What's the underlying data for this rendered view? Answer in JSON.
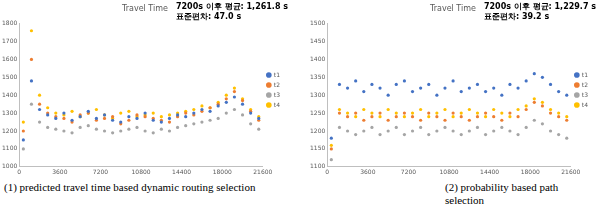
{
  "chart_data": [
    {
      "type": "scatter",
      "title": "Travel Time",
      "annotations": [
        "7200s 이후 평균: 1,261.8 s",
        "표준편차: 47.0 s"
      ],
      "caption": "(1) predicted travel time based dynamic routing selection",
      "x": [
        360,
        1080,
        1800,
        2520,
        3240,
        3960,
        4680,
        5400,
        6120,
        6840,
        7560,
        8280,
        9000,
        9720,
        10440,
        11160,
        11880,
        12600,
        13320,
        14040,
        14760,
        15480,
        16200,
        16920,
        17640,
        18360,
        19080,
        19800,
        20520,
        21240
      ],
      "series": [
        {
          "name": "t1",
          "color": "#4472c4",
          "values": [
            1150,
            1480,
            1320,
            1290,
            1270,
            1300,
            1260,
            1280,
            1310,
            1270,
            1290,
            1260,
            1250,
            1280,
            1270,
            1300,
            1260,
            1250,
            1270,
            1290,
            1280,
            1300,
            1320,
            1310,
            1340,
            1360,
            1390,
            1350,
            1300,
            1270
          ]
        },
        {
          "name": "t2",
          "color": "#ed7d31",
          "values": [
            1200,
            1600,
            1350,
            1300,
            1280,
            1270,
            1250,
            1290,
            1300,
            1260,
            1270,
            1280,
            1240,
            1260,
            1290,
            1280,
            1270,
            1260,
            1250,
            1280,
            1300,
            1290,
            1310,
            1330,
            1350,
            1380,
            1420,
            1370,
            1310,
            1260
          ]
        },
        {
          "name": "t3",
          "color": "#a5a5a5",
          "values": [
            1100,
            1350,
            1250,
            1220,
            1210,
            1200,
            1190,
            1220,
            1230,
            1210,
            1200,
            1190,
            1200,
            1210,
            1220,
            1200,
            1190,
            1210,
            1200,
            1220,
            1230,
            1240,
            1250,
            1260,
            1270,
            1300,
            1320,
            1290,
            1240,
            1210
          ]
        },
        {
          "name": "t4",
          "color": "#ffc000",
          "values": [
            1250,
            1760,
            1400,
            1330,
            1300,
            1290,
            1310,
            1280,
            1300,
            1320,
            1290,
            1270,
            1300,
            1310,
            1280,
            1290,
            1300,
            1280,
            1290,
            1300,
            1310,
            1320,
            1340,
            1330,
            1360,
            1400,
            1440,
            1380,
            1320,
            1280
          ]
        }
      ],
      "xlim": [
        0,
        21600
      ],
      "xticks": [
        0,
        3600,
        7200,
        10800,
        14400,
        18000,
        21600
      ],
      "ylim": [
        1000,
        1800
      ],
      "yticks": [
        1000,
        1100,
        1200,
        1300,
        1400,
        1500,
        1600,
        1700,
        1800
      ],
      "grid": false,
      "legend": "right",
      "marker": "circle"
    },
    {
      "type": "scatter",
      "title": "Travel Time",
      "annotations": [
        "7200s 이후 평균: 1,229.7 s",
        "표준편차: 39.2 s"
      ],
      "caption": "(2) probability based path selection",
      "x": [
        360,
        1080,
        1800,
        2520,
        3240,
        3960,
        4680,
        5400,
        6120,
        6840,
        7560,
        8280,
        9000,
        9720,
        10440,
        11160,
        11880,
        12600,
        13320,
        14040,
        14760,
        15480,
        16200,
        16920,
        17640,
        18360,
        19080,
        19800,
        20520,
        21240
      ],
      "series": [
        {
          "name": "t1",
          "color": "#4472c4",
          "values": [
            1180,
            1330,
            1320,
            1340,
            1310,
            1330,
            1320,
            1300,
            1330,
            1340,
            1310,
            1320,
            1330,
            1300,
            1320,
            1340,
            1310,
            1320,
            1330,
            1310,
            1320,
            1300,
            1330,
            1320,
            1340,
            1360,
            1350,
            1330,
            1310,
            1300
          ]
        },
        {
          "name": "t2",
          "color": "#ed7d31",
          "values": [
            1150,
            1250,
            1240,
            1250,
            1230,
            1240,
            1250,
            1230,
            1240,
            1250,
            1240,
            1230,
            1250,
            1240,
            1230,
            1250,
            1240,
            1230,
            1240,
            1250,
            1240,
            1230,
            1250,
            1240,
            1260,
            1280,
            1270,
            1250,
            1240,
            1230
          ]
        },
        {
          "name": "t3",
          "color": "#a5a5a5",
          "values": [
            1120,
            1210,
            1200,
            1190,
            1200,
            1210,
            1190,
            1200,
            1210,
            1190,
            1200,
            1210,
            1190,
            1200,
            1210,
            1200,
            1190,
            1200,
            1210,
            1190,
            1200,
            1210,
            1200,
            1190,
            1210,
            1230,
            1220,
            1200,
            1190,
            1180
          ]
        },
        {
          "name": "t4",
          "color": "#ffc000",
          "values": [
            1160,
            1260,
            1250,
            1240,
            1260,
            1250,
            1240,
            1260,
            1250,
            1240,
            1250,
            1260,
            1240,
            1250,
            1260,
            1240,
            1250,
            1260,
            1250,
            1240,
            1260,
            1250,
            1240,
            1260,
            1270,
            1290,
            1280,
            1260,
            1250,
            1240
          ]
        }
      ],
      "xlim": [
        0,
        21600
      ],
      "xticks": [
        0,
        3600,
        7200,
        10800,
        14400,
        18000,
        21600
      ],
      "ylim": [
        1100,
        1500
      ],
      "yticks": [
        1100,
        1150,
        1200,
        1250,
        1300,
        1350,
        1400,
        1450,
        1500
      ],
      "grid": false,
      "legend": "right",
      "marker": "circle"
    }
  ]
}
